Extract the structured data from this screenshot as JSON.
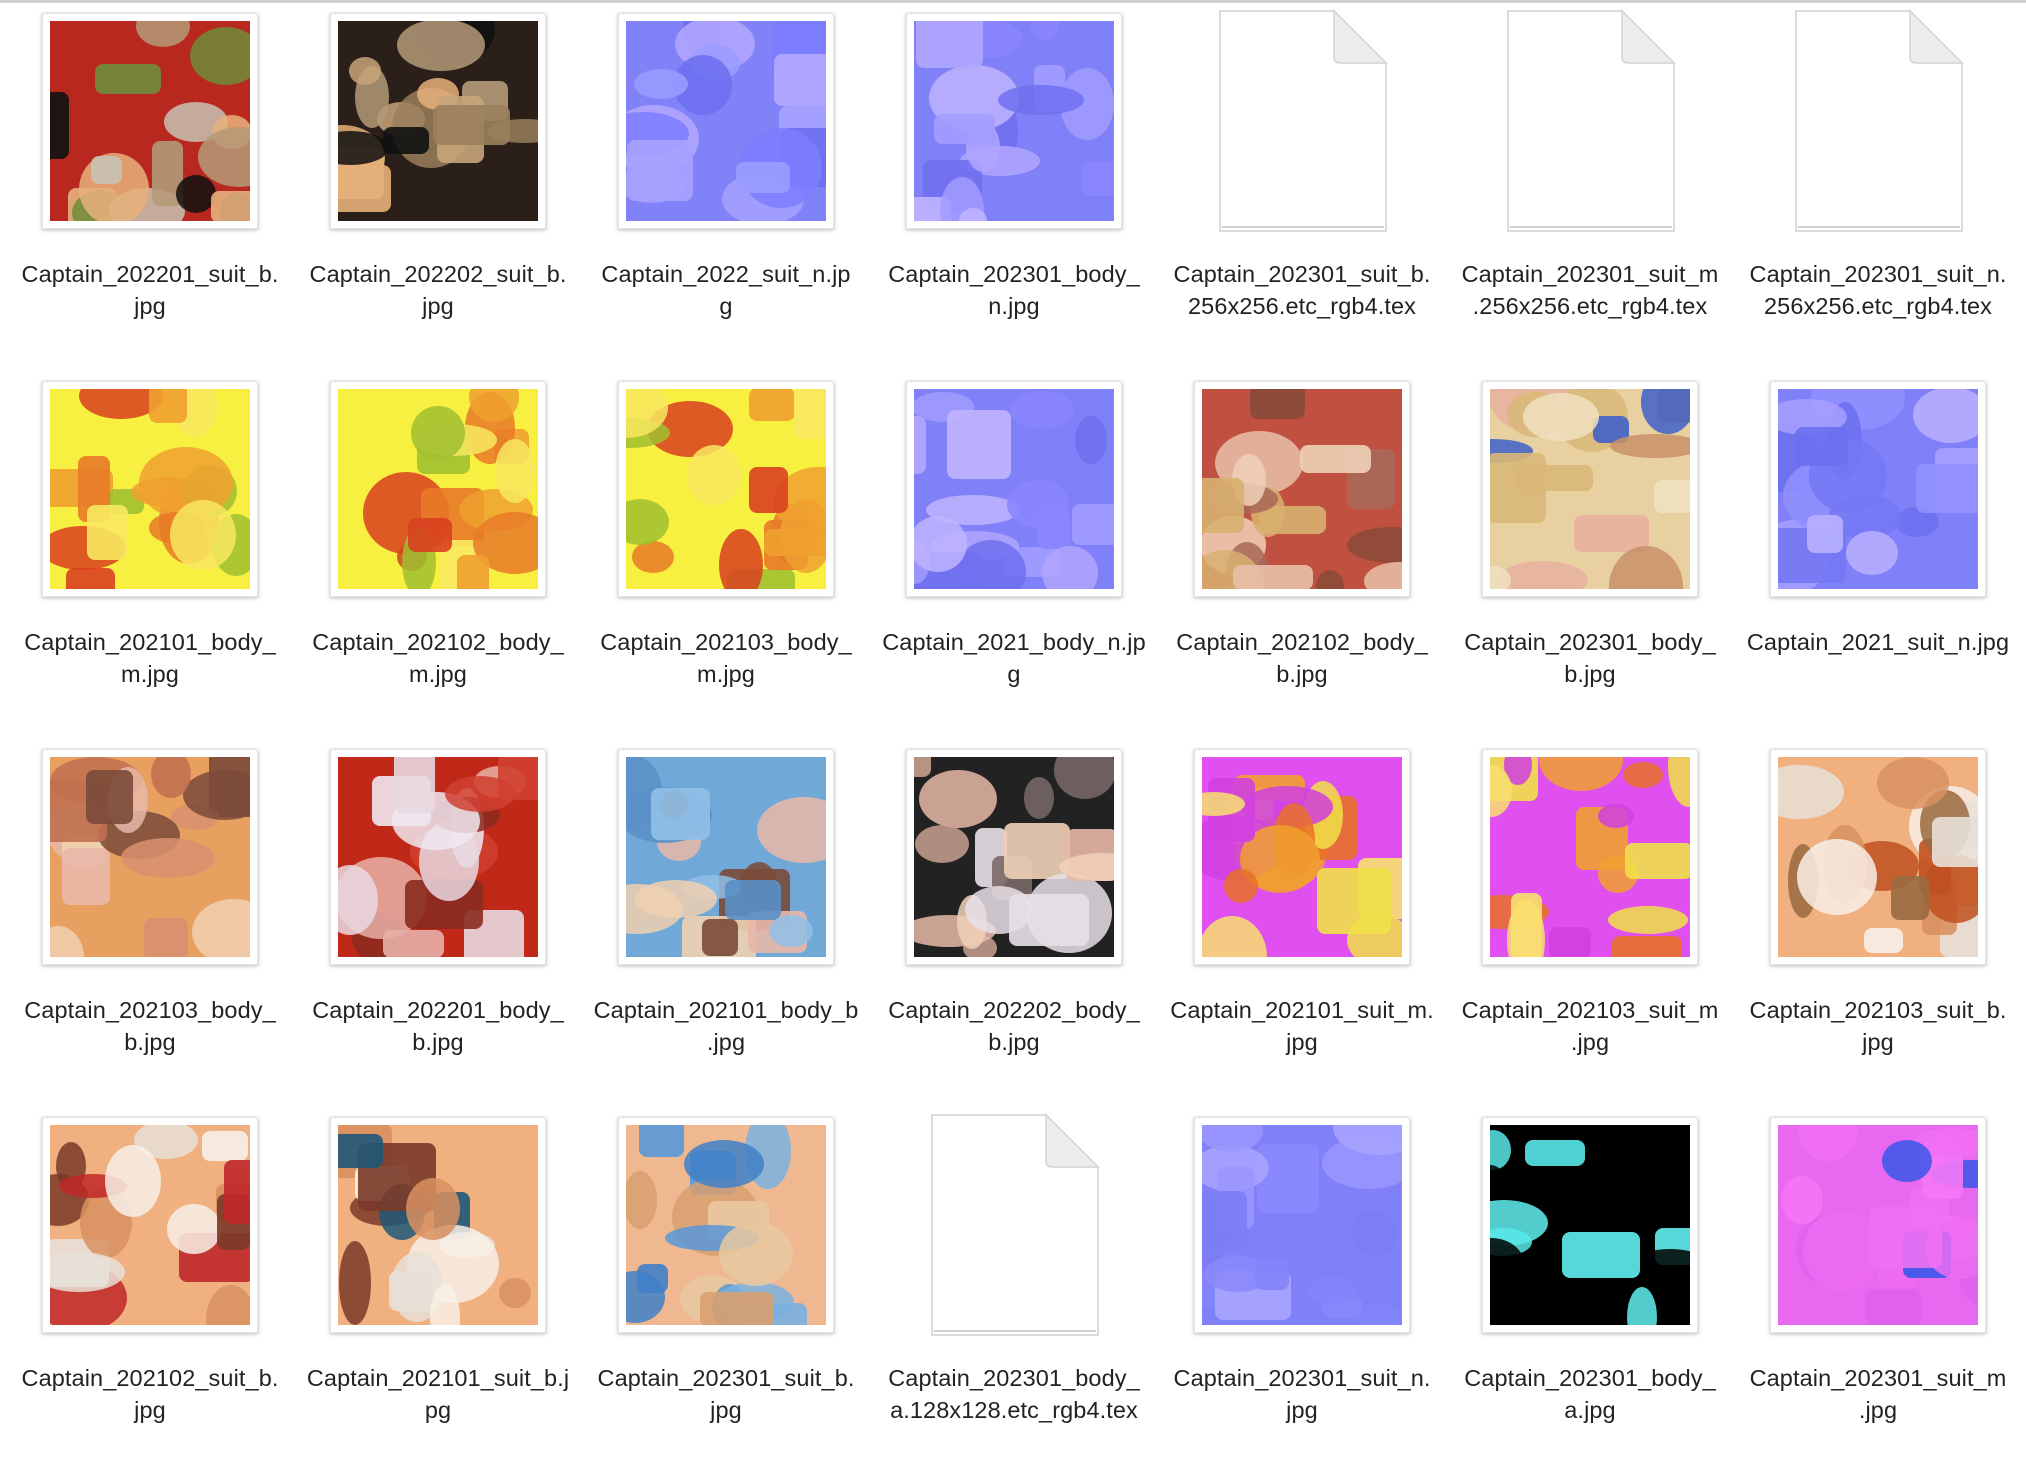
{
  "files": [
    {
      "label": "Captain_202201_suit_b.\njpg",
      "kind": "texture",
      "palette": [
        "#b8281e",
        "#e6b07a",
        "#6f8c3a",
        "#c8c2b4",
        "#b49a78",
        "#111111"
      ],
      "icon": "texture-thumbnail-icon"
    },
    {
      "label": "Captain_202202_suit_b.\njpg",
      "kind": "texture",
      "palette": [
        "#2b1f1a",
        "#e6b07a",
        "#c8a57a",
        "#9a7f5c",
        "#b49a78",
        "#111111"
      ],
      "icon": "texture-thumbnail-icon"
    },
    {
      "label": "Captain_2022_suit_n.jp\ng",
      "kind": "texture",
      "palette": [
        "#8282f8",
        "#a6a2ff",
        "#6c6ef0",
        "#b4a8ff",
        "#7c7cff",
        "#9a9cff"
      ],
      "icon": "texture-thumbnail-icon"
    },
    {
      "label": "Captain_202301_body_\nn.jpg",
      "kind": "texture",
      "palette": [
        "#8080f8",
        "#a29cff",
        "#7070f0",
        "#b0a6ff",
        "#8a86ff",
        "#c0b4ff"
      ],
      "icon": "texture-thumbnail-icon"
    },
    {
      "label": "Captain_202301_suit_b.\n256x256.etc_rgb4.tex",
      "kind": "document",
      "icon": "generic-document-icon"
    },
    {
      "label": "Captain_202301_suit_m\n.256x256.etc_rgb4.tex",
      "kind": "document",
      "icon": "generic-document-icon"
    },
    {
      "label": "Captain_202301_suit_n.\n256x256.etc_rgb4.tex",
      "kind": "document",
      "icon": "generic-document-icon"
    },
    {
      "label": "Captain_202101_body_\nm.jpg",
      "kind": "texture",
      "palette": [
        "#f8f040",
        "#f0a030",
        "#e87a28",
        "#d84020",
        "#a0c030",
        "#f8e860"
      ],
      "icon": "texture-thumbnail-icon"
    },
    {
      "label": "Captain_202102_body_\nm.jpg",
      "kind": "texture",
      "palette": [
        "#f8f040",
        "#f0a030",
        "#e87a28",
        "#d84020",
        "#a0c030",
        "#f8e860"
      ],
      "icon": "texture-thumbnail-icon"
    },
    {
      "label": "Captain_202103_body_\nm.jpg",
      "kind": "texture",
      "palette": [
        "#f8f040",
        "#f0a030",
        "#e87a28",
        "#d84020",
        "#a0c030",
        "#f8e860"
      ],
      "icon": "texture-thumbnail-icon"
    },
    {
      "label": "Captain_2021_body_n.jp\ng",
      "kind": "texture",
      "palette": [
        "#8080f8",
        "#a29cff",
        "#7070f0",
        "#b0a6ff",
        "#8a86ff",
        "#c0b4ff"
      ],
      "icon": "texture-thumbnail-icon"
    },
    {
      "label": "Captain_202102_body_\nb.jpg",
      "kind": "texture",
      "palette": [
        "#c05040",
        "#d8b070",
        "#8a4a38",
        "#e8c0a8",
        "#a86858",
        "#f0d0b8"
      ],
      "icon": "texture-thumbnail-icon"
    },
    {
      "label": "Captain_202301_body_\nb.jpg",
      "kind": "texture",
      "palette": [
        "#e8d0a0",
        "#d8b878",
        "#4060c8",
        "#e8b0a0",
        "#c89068",
        "#f0e0c0"
      ],
      "icon": "texture-thumbnail-icon"
    },
    {
      "label": "Captain_2021_suit_n.jpg",
      "kind": "texture",
      "palette": [
        "#8080f8",
        "#6c70f0",
        "#a8a0ff",
        "#9090ff",
        "#7478f4",
        "#b8b0ff"
      ],
      "icon": "texture-thumbnail-icon"
    },
    {
      "label": "Captain_202103_body_\nb.jpg",
      "kind": "texture",
      "palette": [
        "#e8a060",
        "#7a4a38",
        "#e8b8a8",
        "#c07050",
        "#f0d0b0",
        "#d89070"
      ],
      "icon": "texture-thumbnail-icon"
    },
    {
      "label": "Captain_202201_body_\nb.jpg",
      "kind": "texture",
      "palette": [
        "#c02818",
        "#e8d8e0",
        "#8a2a20",
        "#e8b0a8",
        "#f0e8f0",
        "#d04030"
      ],
      "icon": "texture-thumbnail-icon"
    },
    {
      "label": "Captain_202101_body_b\n.jpg",
      "kind": "texture",
      "palette": [
        "#70a8d8",
        "#7a4a38",
        "#e8b8a8",
        "#5890c8",
        "#f0d0b0",
        "#90c0e8"
      ],
      "icon": "texture-thumbnail-icon"
    },
    {
      "label": "Captain_202202_body_\nb.jpg",
      "kind": "texture",
      "palette": [
        "#222222",
        "#e8e0e8",
        "#c8a090",
        "#e8b8a8",
        "#7a6a68",
        "#f0d0b8"
      ],
      "icon": "texture-thumbnail-icon"
    },
    {
      "label": "Captain_202101_suit_m.\njpg",
      "kind": "texture",
      "palette": [
        "#e050f0",
        "#f0e048",
        "#f0a030",
        "#d040e0",
        "#e87028",
        "#f8e070"
      ],
      "icon": "texture-thumbnail-icon"
    },
    {
      "label": "Captain_202103_suit_m\n.jpg",
      "kind": "texture",
      "palette": [
        "#e050f0",
        "#f0e048",
        "#f0a030",
        "#d040e0",
        "#e87028",
        "#f8e070"
      ],
      "icon": "texture-thumbnail-icon"
    },
    {
      "label": "Captain_202103_suit_b.\njpg",
      "kind": "texture",
      "palette": [
        "#f0b080",
        "#e8e0d8",
        "#c05020",
        "#9a6a40",
        "#d89060",
        "#f8f0e8"
      ],
      "icon": "texture-thumbnail-icon"
    },
    {
      "label": "Captain_202102_suit_b.\njpg",
      "kind": "texture",
      "palette": [
        "#f0b080",
        "#c02828",
        "#e8e0d8",
        "#7a3a28",
        "#d89060",
        "#f8f0e8"
      ],
      "icon": "texture-thumbnail-icon"
    },
    {
      "label": "Captain_202101_suit_b.j\npg",
      "kind": "texture",
      "palette": [
        "#f0b080",
        "#205878",
        "#e8e0d8",
        "#7a3a28",
        "#d89060",
        "#f8f0e8"
      ],
      "icon": "texture-thumbnail-icon"
    },
    {
      "label": "Captain_202301_suit_b.\njpg",
      "kind": "texture",
      "palette": [
        "#f0b890",
        "#5898d8",
        "#7ab0e0",
        "#d8a070",
        "#4080c8",
        "#e8c8a0"
      ],
      "icon": "texture-thumbnail-icon"
    },
    {
      "label": "Captain_202301_body_\na.128x128.etc_rgb4.tex",
      "kind": "document",
      "icon": "generic-document-icon"
    },
    {
      "label": "Captain_202301_suit_n.\njpg",
      "kind": "texture",
      "palette": [
        "#8080f8",
        "#8484fa",
        "#9a96ff",
        "#7c7cf6",
        "#8a88fc",
        "#a8a4ff"
      ],
      "icon": "texture-thumbnail-icon"
    },
    {
      "label": "Captain_202301_body_\na.jpg",
      "kind": "texture",
      "palette": [
        "#000000",
        "#60f0f0",
        "#000000",
        "#58e8e8",
        "#000000",
        "#000000"
      ],
      "icon": "texture-thumbnail-icon"
    },
    {
      "label": "Captain_202301_suit_m\n.jpg",
      "kind": "texture",
      "palette": [
        "#e868f0",
        "#f070f4",
        "#3858e8",
        "#e060ec",
        "#ec6cf2",
        "#f478f6"
      ],
      "icon": "texture-thumbnail-icon"
    }
  ]
}
